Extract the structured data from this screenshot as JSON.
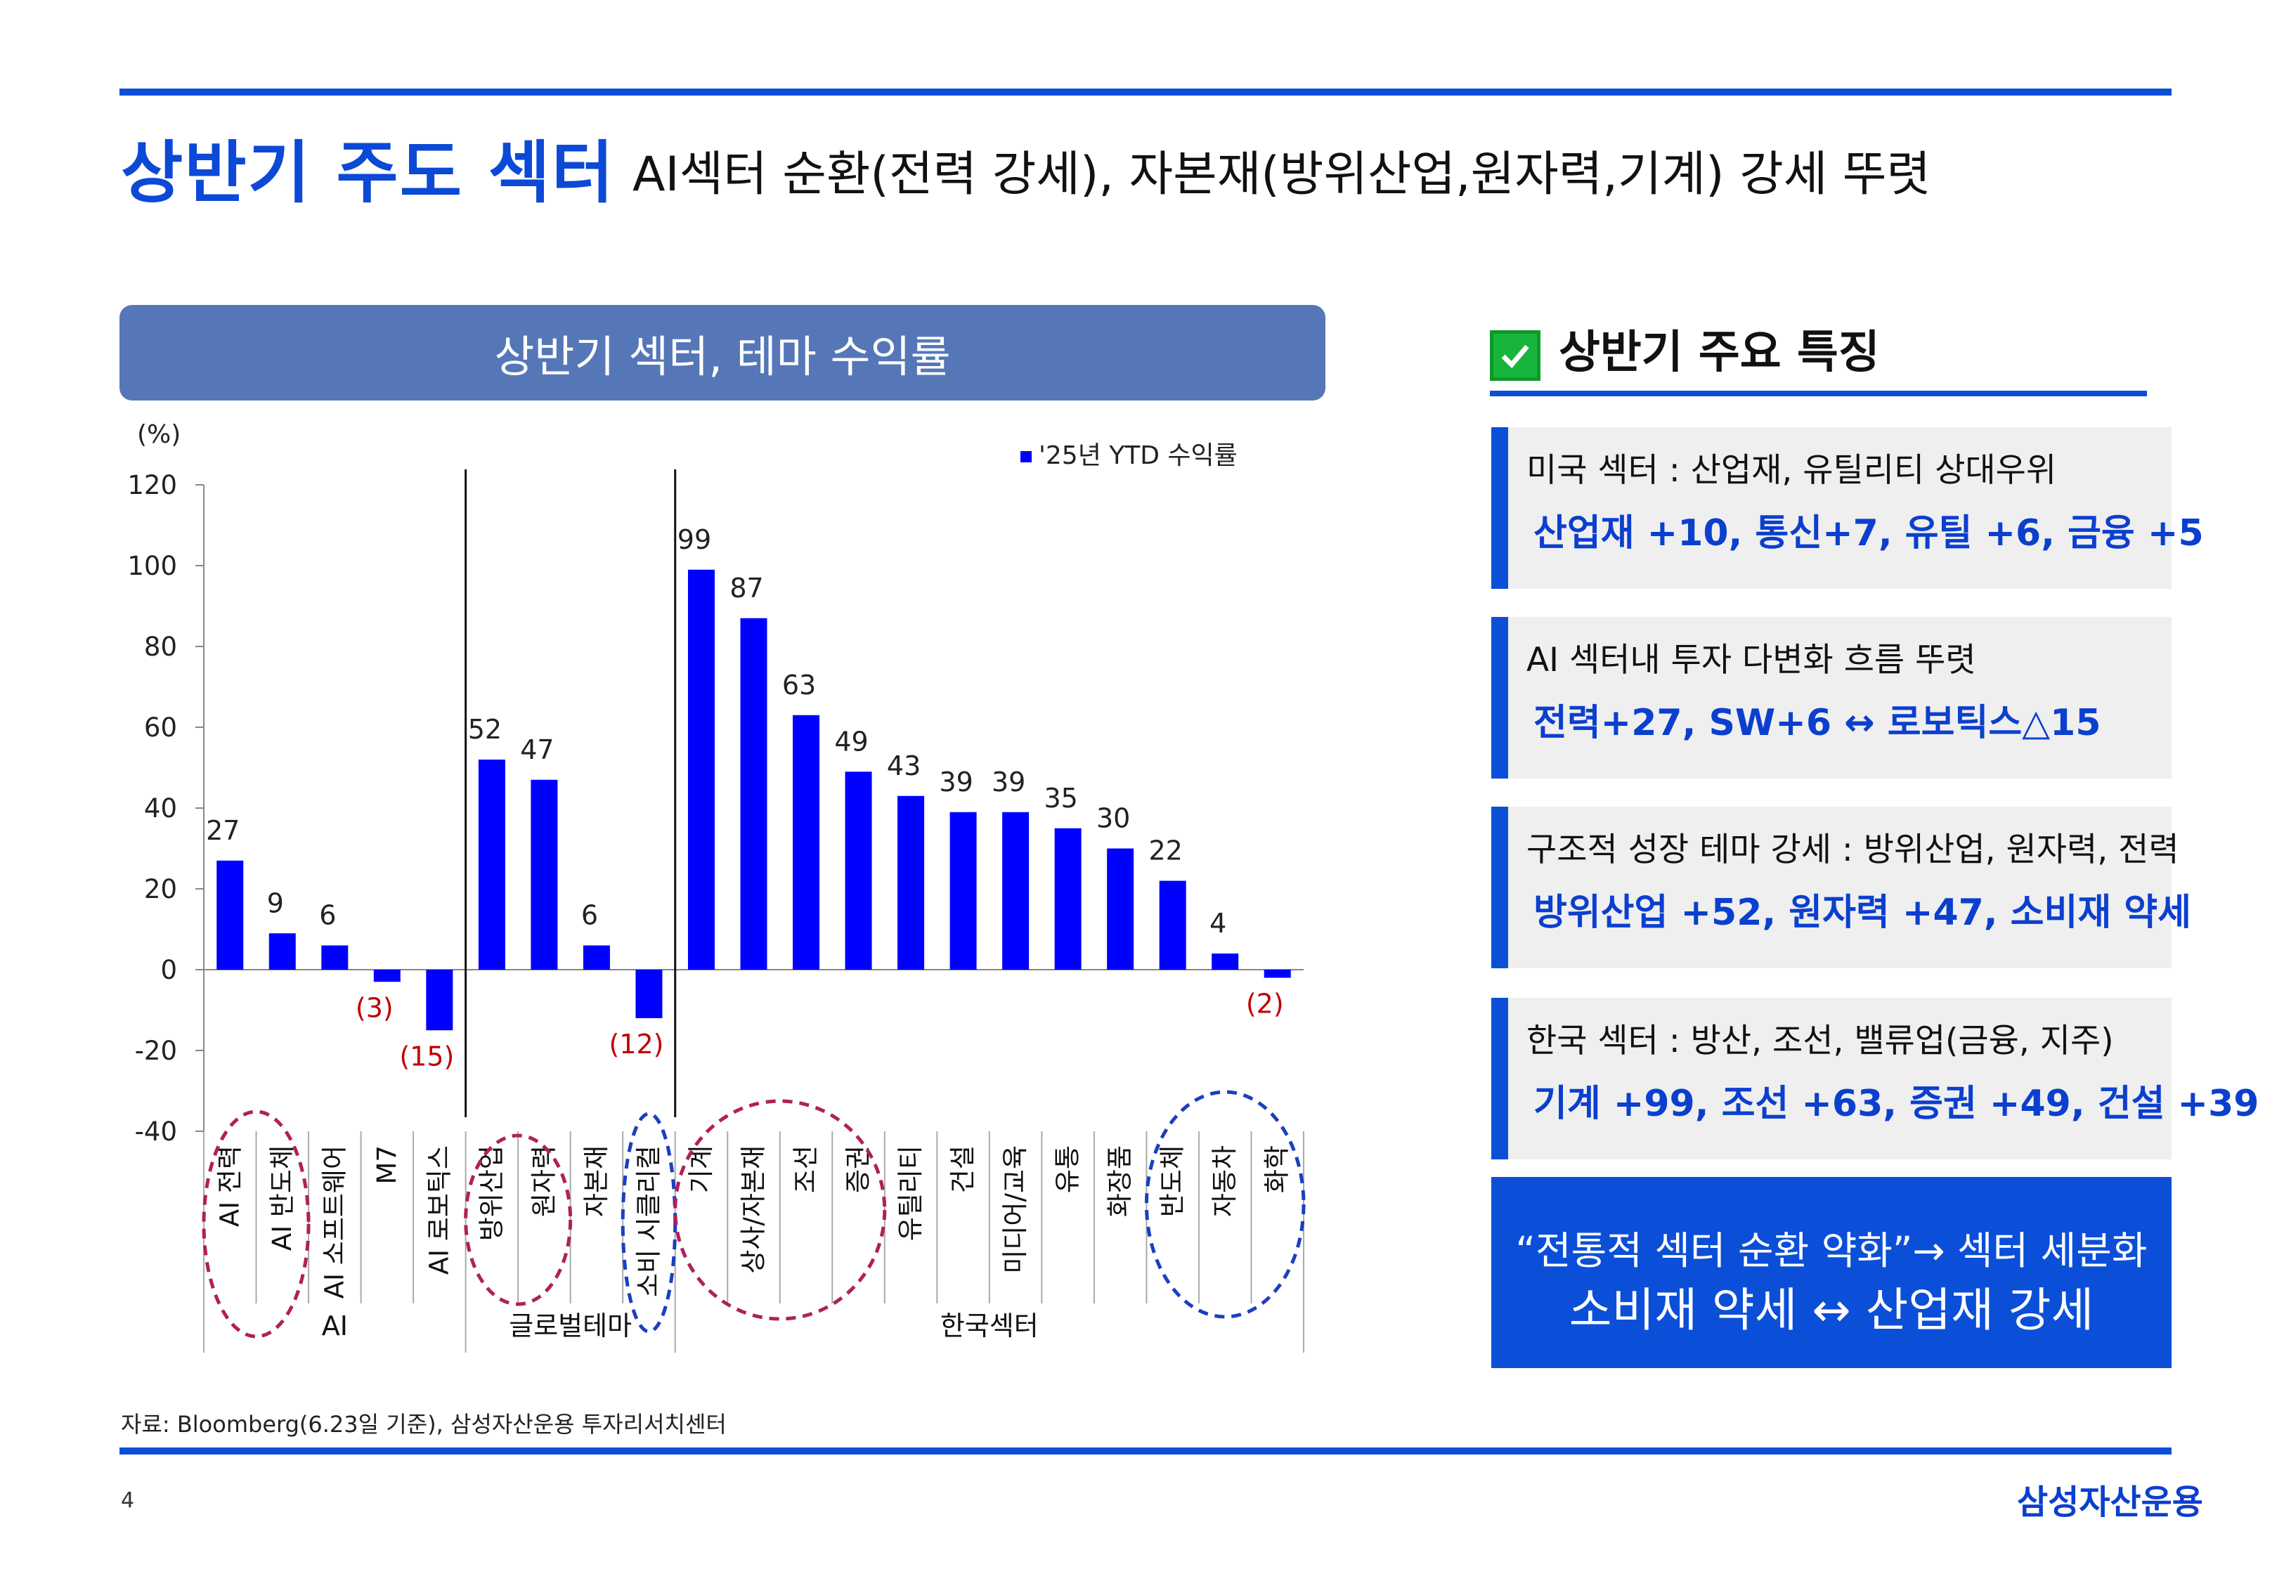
{
  "header": {
    "title": "상반기 주도 섹터",
    "subtitle": "AI섹터 순환(전력 강세), 자본재(방위산업,원자력,기계) 강세 뚜렷"
  },
  "chart_panel": {
    "title": "상반기 섹터, 테마 수익률"
  },
  "chart_data": {
    "type": "bar",
    "title": "상반기 섹터, 테마 수익률",
    "ylabel": "(%)",
    "ylim": [
      -40,
      120
    ],
    "yticks": [
      120,
      100,
      80,
      60,
      40,
      20,
      0,
      -20,
      -40
    ],
    "legend": {
      "label": "'25년 YTD 수익률",
      "position": "top-right"
    },
    "series": [
      {
        "name": "'25년 YTD 수익률",
        "values": [
          27,
          9,
          6,
          -3,
          -15,
          52,
          47,
          6,
          -12,
          99,
          87,
          63,
          49,
          43,
          39,
          39,
          35,
          30,
          22,
          4,
          -2
        ]
      }
    ],
    "categories": [
      "AI 전력",
      "AI 반도체",
      "AI 소프트웨어",
      "M7",
      "AI 로보틱스",
      "방위산업",
      "원자력",
      "자본재",
      "소비 시클리컬",
      "기계",
      "상사/자본재",
      "조선",
      "증권",
      "유틸리티",
      "건설",
      "미디어/교육",
      "유통",
      "화장품",
      "반도체",
      "자동차",
      "화학"
    ],
    "data_labels": [
      "27",
      "9",
      "6",
      "(3)",
      "(15)",
      "52",
      "47",
      "6",
      "(12)",
      "99",
      "87",
      "63",
      "49",
      "43",
      "39",
      "39",
      "35",
      "30",
      "22",
      "4",
      "(2)"
    ],
    "groups": [
      {
        "label": "AI",
        "start": 0,
        "end": 4
      },
      {
        "label": "글로벌테마",
        "start": 5,
        "end": 8
      },
      {
        "label": "한국섹터",
        "start": 9,
        "end": 20
      }
    ],
    "colors": {
      "bar": "#0000ff",
      "negative_label": "#c00000",
      "circle_red": "#b0205a",
      "circle_blue": "#1a3fbf"
    }
  },
  "features": {
    "title": "상반기 주요 특징",
    "items": [
      {
        "label": "미국 섹터 : 산업재, 유틸리티 상대우위",
        "highlight": "산업재 +10, 통신+7, 유틸 +6, 금융 +5"
      },
      {
        "label": "AI 섹터내 투자 다변화 흐름 뚜렷",
        "highlight": "전력+27, SW+6 ↔ 로보틱스△15"
      },
      {
        "label": "구조적 성장 테마 강세 : 방위산업, 원자력, 전력",
        "highlight": "방위산업 +52, 원자력 +47, 소비재 약세"
      },
      {
        "label": "한국 섹터 : 방산, 조선, 밸류업(금융, 지주)",
        "highlight": "기계 +99, 조선 +63,  증권 +49, 건설 +39"
      }
    ],
    "summary_line1": "“전통적 섹터 순환 약화”→ 섹터 세분화",
    "summary_line2": "소비재 약세 ↔ 산업재 강세"
  },
  "footer": {
    "source": "자료: Bloomberg(6.23일 기준), 삼성자산운용 투자리서치센터",
    "page_number": "4",
    "logo": "삼성자산운용"
  }
}
